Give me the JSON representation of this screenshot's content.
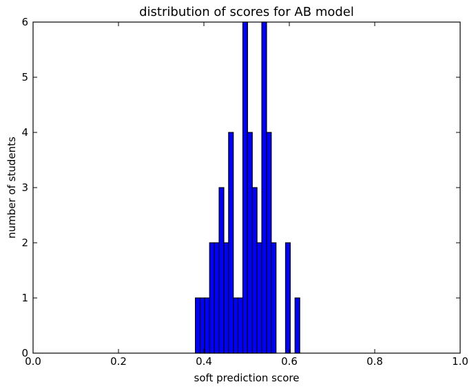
{
  "chart_data": {
    "type": "bar",
    "title": "distribution of scores for AB model",
    "xlabel": "soft prediction score",
    "ylabel": "number of students",
    "xlim": [
      0.0,
      1.0
    ],
    "ylim": [
      0,
      6
    ],
    "x_ticks": [
      "0.0",
      "0.2",
      "0.4",
      "0.6",
      "0.8",
      "1.0"
    ],
    "y_ticks": [
      "0",
      "1",
      "2",
      "3",
      "4",
      "5",
      "6"
    ],
    "bin_width": 0.0111,
    "bar_color": "#0000ff",
    "edge_color": "#000000",
    "grid": false,
    "bins": [
      {
        "x0": 0.38,
        "count": 1
      },
      {
        "x0": 0.3911,
        "count": 1
      },
      {
        "x0": 0.4022,
        "count": 1
      },
      {
        "x0": 0.4133,
        "count": 2
      },
      {
        "x0": 0.4244,
        "count": 2
      },
      {
        "x0": 0.4356,
        "count": 3
      },
      {
        "x0": 0.4467,
        "count": 2
      },
      {
        "x0": 0.4578,
        "count": 4
      },
      {
        "x0": 0.4689,
        "count": 1
      },
      {
        "x0": 0.48,
        "count": 1
      },
      {
        "x0": 0.4911,
        "count": 6
      },
      {
        "x0": 0.5022,
        "count": 4
      },
      {
        "x0": 0.5133,
        "count": 3
      },
      {
        "x0": 0.5244,
        "count": 2
      },
      {
        "x0": 0.5356,
        "count": 6
      },
      {
        "x0": 0.5467,
        "count": 4
      },
      {
        "x0": 0.5578,
        "count": 2
      },
      {
        "x0": 0.5689,
        "count": 0
      },
      {
        "x0": 0.58,
        "count": 0
      },
      {
        "x0": 0.5911,
        "count": 2
      },
      {
        "x0": 0.6022,
        "count": 0
      },
      {
        "x0": 0.6133,
        "count": 1
      }
    ]
  }
}
